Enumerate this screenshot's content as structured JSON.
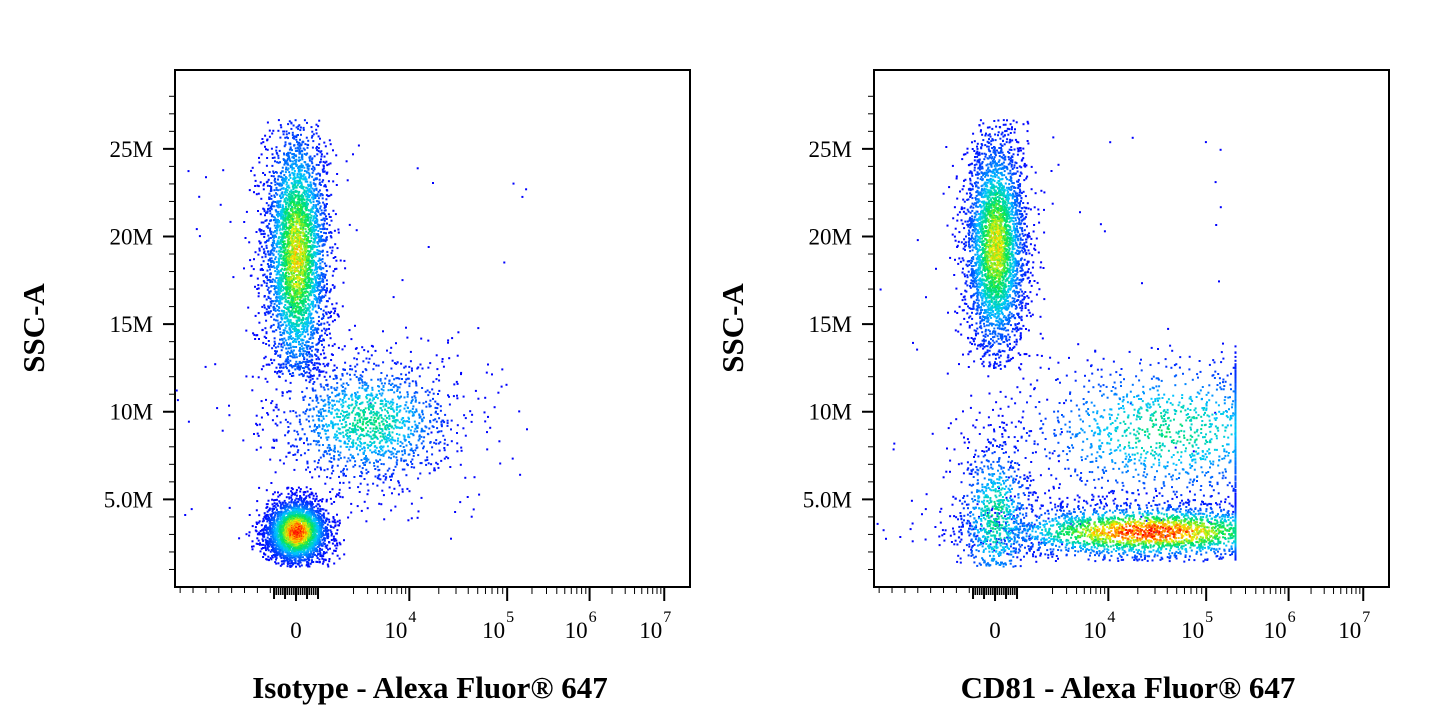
{
  "chart_data": [
    {
      "type": "scatter",
      "subtype": "flow-cytometry-density-dot-plot",
      "xlabel": "Isotype - Alexa Fluor® 647",
      "ylabel": "SSC-A",
      "x_scale": "biexponential",
      "y_ticks": [
        "25M",
        "20M",
        "15M",
        "10M",
        "5.0M"
      ],
      "y_tick_values": [
        25000000,
        20000000,
        15000000,
        10000000,
        5000000
      ],
      "x_ticks": [
        {
          "base": "0",
          "exp": ""
        },
        {
          "base": "10",
          "exp": "4"
        },
        {
          "base": "10",
          "exp": "5"
        },
        {
          "base": "10",
          "exp": "6"
        },
        {
          "base": "10",
          "exp": "7"
        }
      ],
      "x_tick_values": [
        0,
        10000,
        100000,
        1000000,
        10000000
      ],
      "ylim": [
        0,
        29500000
      ],
      "populations": [
        {
          "x": 0,
          "y": 19000000,
          "count": 3600,
          "sx": 0.032,
          "sy": 4000000,
          "ytrunc": [
            12000000,
            26700000
          ]
        },
        {
          "x": 0,
          "y": 3200000,
          "count": 3000,
          "sx": 0.03,
          "sy": 900000,
          "ytrunc": [
            1200000,
            12000000
          ]
        },
        {
          "x": 3000,
          "y": 9500000,
          "count": 1500,
          "sx": 0.09,
          "sy": 1900000,
          "ytrunc": [
            2500000,
            15500000
          ]
        }
      ],
      "colormap": [
        "#0000ff",
        "#00ffff",
        "#00ff00",
        "#ffff00",
        "#ff0000"
      ]
    },
    {
      "type": "scatter",
      "subtype": "flow-cytometry-density-dot-plot",
      "xlabel": "CD81 - Alexa Fluor® 647",
      "ylabel": "SSC-A",
      "x_scale": "biexponential",
      "y_ticks": [
        "25M",
        "20M",
        "15M",
        "10M",
        "5.0M"
      ],
      "y_tick_values": [
        25000000,
        20000000,
        15000000,
        10000000,
        5000000
      ],
      "x_ticks": [
        {
          "base": "0",
          "exp": ""
        },
        {
          "base": "10",
          "exp": "4"
        },
        {
          "base": "10",
          "exp": "5"
        },
        {
          "base": "10",
          "exp": "6"
        },
        {
          "base": "10",
          "exp": "7"
        }
      ],
      "x_tick_values": [
        0,
        10000,
        100000,
        1000000,
        10000000
      ],
      "ylim": [
        0,
        29500000
      ],
      "populations": [
        {
          "x": 0,
          "y": 19500000,
          "count": 3400,
          "sx": 0.03,
          "sy": 3300000,
          "ytrunc": [
            12500000,
            26700000
          ]
        },
        {
          "x": 0,
          "y": 4000000,
          "count": 800,
          "sx": 0.04,
          "sy": 2500000,
          "ytrunc": [
            1200000,
            12000000
          ]
        },
        {
          "x": 25000,
          "y": 3200000,
          "count": 2600,
          "sx": 0.16,
          "sy": 800000,
          "ytrunc": [
            1500000,
            7000000
          ]
        },
        {
          "x": 40000,
          "y": 9000000,
          "count": 1300,
          "sx": 0.16,
          "sy": 2300000,
          "ytrunc": [
            3000000,
            14000000
          ]
        }
      ],
      "colormap": [
        "#0000ff",
        "#00ffff",
        "#00ff00",
        "#ffff00",
        "#ff0000"
      ]
    }
  ]
}
